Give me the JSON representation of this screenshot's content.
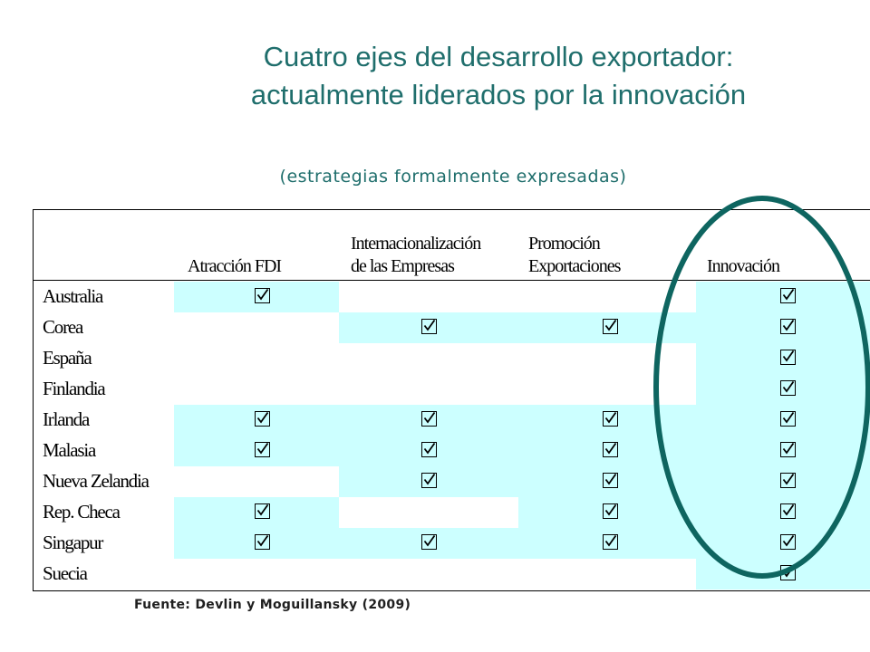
{
  "title": {
    "line1": "Cuatro ejes del desarrollo exportador:",
    "line2": "actualmente liderados por la innovación"
  },
  "subtitle": "(estrategias formalmente expresadas)",
  "table": {
    "columns": [
      {
        "line1": "",
        "line2": "Atracción FDI"
      },
      {
        "line1": "Internacionalización",
        "line2": "de las Empresas"
      },
      {
        "line1": "Promoción",
        "line2": "Exportaciones"
      },
      {
        "line1": "",
        "line2": "Innovación"
      }
    ],
    "rows": [
      {
        "country": "Australia",
        "shaded": [
          true,
          false,
          false,
          true
        ],
        "checked": [
          true,
          false,
          false,
          true
        ]
      },
      {
        "country": "Corea",
        "shaded": [
          false,
          true,
          true,
          true
        ],
        "checked": [
          false,
          true,
          true,
          true
        ]
      },
      {
        "country": "España",
        "shaded": [
          false,
          false,
          false,
          true
        ],
        "checked": [
          false,
          false,
          false,
          true
        ]
      },
      {
        "country": "Finlandia",
        "shaded": [
          false,
          false,
          false,
          true
        ],
        "checked": [
          false,
          false,
          false,
          true
        ]
      },
      {
        "country": "Irlanda",
        "shaded": [
          true,
          true,
          true,
          true
        ],
        "checked": [
          true,
          true,
          true,
          true
        ]
      },
      {
        "country": "Malasia",
        "shaded": [
          true,
          true,
          true,
          true
        ],
        "checked": [
          true,
          true,
          true,
          true
        ]
      },
      {
        "country": "Nueva Zelandia",
        "shaded": [
          false,
          true,
          true,
          true
        ],
        "checked": [
          false,
          true,
          true,
          true
        ]
      },
      {
        "country": "Rep. Checa",
        "shaded": [
          true,
          false,
          true,
          true
        ],
        "checked": [
          true,
          false,
          true,
          true
        ]
      },
      {
        "country": "Singapur",
        "shaded": [
          true,
          true,
          true,
          true
        ],
        "checked": [
          true,
          true,
          true,
          true
        ]
      },
      {
        "country": "Suecia",
        "shaded": [
          false,
          false,
          false,
          true
        ],
        "checked": [
          false,
          false,
          false,
          true
        ]
      }
    ]
  },
  "highlight_color": "#0e6560",
  "cell_color": "#ccffff",
  "source": "Fuente: Devlin y Moguillansky (2009)"
}
